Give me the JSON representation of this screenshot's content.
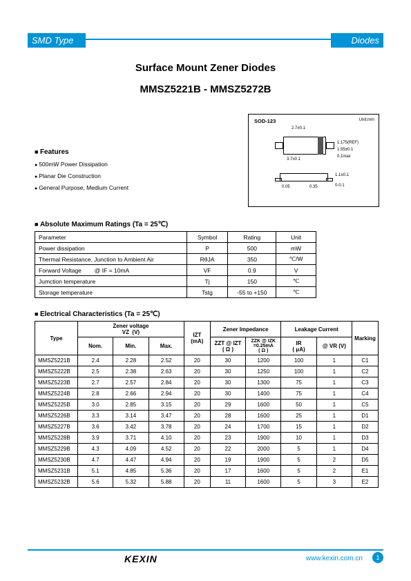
{
  "header": {
    "left": "SMD Type",
    "right": "Diodes"
  },
  "titles": {
    "t1": "Surface Mount Zener Diodes",
    "t2": "MMSZ5221B - MMSZ5272B"
  },
  "package": {
    "label": "SOD-123",
    "unit_label": "Unit:mm",
    "dims": {
      "top_w": "2.7±0.1",
      "overall_w": "3.7±0.1",
      "h": "1.55±0.1",
      "band_w": "1.175(REF)",
      "t": "0.1max",
      "lead_w1": "0.05",
      "lead_w2": "0.35",
      "thick": "1.1±0.1",
      "lead_t": "0-0.1"
    }
  },
  "features": {
    "heading": "Features",
    "items": [
      "500mW Power Dissipation",
      "Planar Die Construction",
      "General Purpose, Medium Current"
    ]
  },
  "abs": {
    "heading": "Absolute Maximum Ratings (Ta = 25℃)",
    "head": {
      "param": "Parameter",
      "sym": "Symbol",
      "rating": "Rating",
      "unit": "Unit"
    },
    "rows": [
      {
        "p": "Power dissipation",
        "s": "P",
        "r": "500",
        "u": "mW"
      },
      {
        "p": "Thermal Resistance, Junction to Ambient Air",
        "s": "RθJA",
        "r": "350",
        "u": "℃/W"
      },
      {
        "p": "Forward Voltage        @ IF = 10mA",
        "s": "VF",
        "r": "0.9",
        "u": "V"
      },
      {
        "p": "Jumction temperature",
        "s": "Tj",
        "r": "150",
        "u": "℃"
      },
      {
        "p": "Storage temperature",
        "s": "Tstg",
        "r": "-55 to +150",
        "u": "℃"
      }
    ]
  },
  "elec": {
    "heading": "Electrical Characteristics (Ta = 25℃)",
    "head": {
      "type": "Type",
      "zv": "Zener voltage\nVZ  (V)",
      "zi": "Zener Impedance",
      "lc": "Leakage Current",
      "marking": "Marking",
      "nom": "Nom.",
      "min": "Min.",
      "max": "Max.",
      "izt": "IZT\n(mA)",
      "zzt": "ZZT @ IZT\n( Ω )",
      "zzk": "ZZK @ IZK\n=0.25mA\n( Ω )",
      "ir": "IR\n( μA)",
      "vr": "@ VR   (V)"
    },
    "rows": [
      {
        "type": "MMSZ5221B",
        "nom": "2.4",
        "min": "2.28",
        "max": "2.52",
        "izt": "20",
        "zzt": "30",
        "zzk": "1200",
        "ir": "100",
        "vr": "1",
        "mk": "C1"
      },
      {
        "type": "MMSZ5222B",
        "nom": "2.5",
        "min": "2.38",
        "max": "2.63",
        "izt": "20",
        "zzt": "30",
        "zzk": "1250",
        "ir": "100",
        "vr": "1",
        "mk": "C2"
      },
      {
        "type": "MMSZ5223B",
        "nom": "2.7",
        "min": "2.57",
        "max": "2.84",
        "izt": "20",
        "zzt": "30",
        "zzk": "1300",
        "ir": "75",
        "vr": "1",
        "mk": "C3"
      },
      {
        "type": "MMSZ5224B",
        "nom": "2.8",
        "min": "2.66",
        "max": "2.94",
        "izt": "20",
        "zzt": "30",
        "zzk": "1400",
        "ir": "75",
        "vr": "1",
        "mk": "C4"
      },
      {
        "type": "MMSZ5225B",
        "nom": "3.0",
        "min": "2.85",
        "max": "3.15",
        "izt": "20",
        "zzt": "29",
        "zzk": "1600",
        "ir": "50",
        "vr": "1",
        "mk": "C5"
      },
      {
        "type": "MMSZ5226B",
        "nom": "3.3",
        "min": "3.14",
        "max": "3.47",
        "izt": "20",
        "zzt": "28",
        "zzk": "1600",
        "ir": "25",
        "vr": "1",
        "mk": "D1"
      },
      {
        "type": "MMSZ5227B",
        "nom": "3.6",
        "min": "3.42",
        "max": "3.78",
        "izt": "20",
        "zzt": "24",
        "zzk": "1700",
        "ir": "15",
        "vr": "1",
        "mk": "D2"
      },
      {
        "type": "MMSZ5228B",
        "nom": "3.9",
        "min": "3.71",
        "max": "4.10",
        "izt": "20",
        "zzt": "23",
        "zzk": "1900",
        "ir": "10",
        "vr": "1",
        "mk": "D3"
      },
      {
        "type": "MMSZ5229B",
        "nom": "4.3",
        "min": "4.09",
        "max": "4.52",
        "izt": "20",
        "zzt": "22",
        "zzk": "2000",
        "ir": "5",
        "vr": "1",
        "mk": "D4"
      },
      {
        "type": "MMSZ5230B",
        "nom": "4.7",
        "min": "4.47",
        "max": "4.94",
        "izt": "20",
        "zzt": "19",
        "zzk": "1900",
        "ir": "5",
        "vr": "2",
        "mk": "D5"
      },
      {
        "type": "MMSZ5231B",
        "nom": "5.1",
        "min": "4.85",
        "max": "5.36",
        "izt": "20",
        "zzt": "17",
        "zzk": "1600",
        "ir": "5",
        "vr": "2",
        "mk": "E1"
      },
      {
        "type": "MMSZ5232B",
        "nom": "5.6",
        "min": "5.32",
        "max": "5.88",
        "izt": "20",
        "zzt": "11",
        "zzk": "1600",
        "ir": "5",
        "vr": "3",
        "mk": "E2"
      }
    ]
  },
  "footer": {
    "logo": "KEXIN",
    "url": "www.kexin.com.cn",
    "page": "1"
  }
}
